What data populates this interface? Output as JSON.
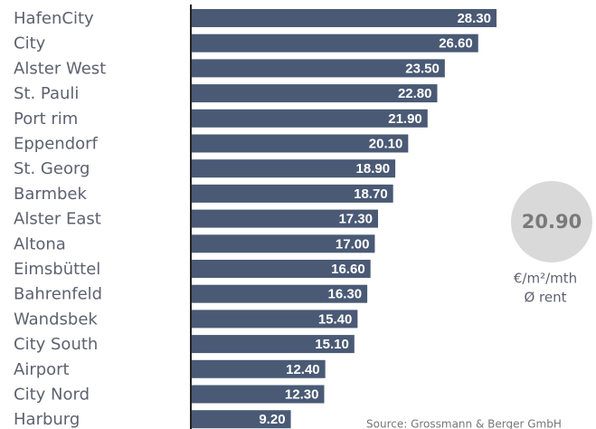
{
  "chart_data": {
    "type": "bar",
    "orientation": "horizontal",
    "categories": [
      "HafenCity",
      "City",
      "Alster West",
      "St. Pauli",
      "Port rim",
      "Eppendorf",
      "St. Georg",
      "Barmbek",
      "Alster East",
      "Altona",
      "Eimsbüttel",
      "Bahrenfeld",
      "Wandsbek",
      "City South",
      "Airport",
      "City Nord",
      "Harburg"
    ],
    "values": [
      28.3,
      26.6,
      23.5,
      22.8,
      21.9,
      20.1,
      18.9,
      18.7,
      17.3,
      17.0,
      16.6,
      16.3,
      15.4,
      15.1,
      12.4,
      12.3,
      9.2
    ],
    "value_labels": [
      "28.30",
      "26.60",
      "23.50",
      "22.80",
      "21.90",
      "20.10",
      "18.90",
      "18.70",
      "17.30",
      "17.00",
      "16.60",
      "16.30",
      "15.40",
      "15.10",
      "12.40",
      "12.30",
      "9.20"
    ],
    "color": "#4a5a75",
    "average": {
      "value": 20.9,
      "label": "20.90",
      "unit": "€/m²/mth",
      "caption": "Ø rent"
    },
    "source": "Source: Grossmann & Berger GmbH"
  }
}
